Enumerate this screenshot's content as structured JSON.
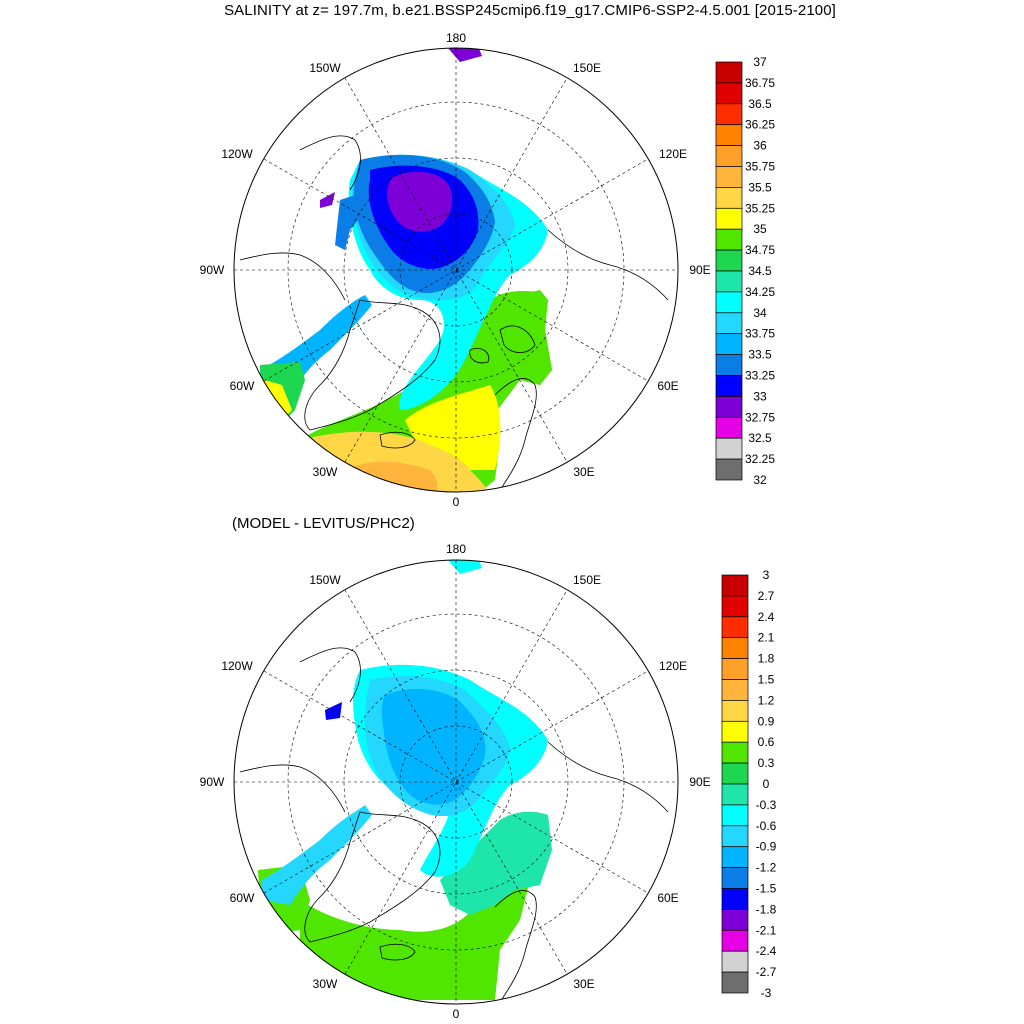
{
  "title": "SALINITY at z= 197.7m, b.e21.BSSP245cmip6.f19_g17.CMIP6-SSP2-4.5.001 [2015-2100]",
  "subtitle": "(MODEL - LEVITUS/PHC2)",
  "map_labels": {
    "lon_180": "180",
    "lon_150w": "150W",
    "lon_150e": "150E",
    "lon_120w": "120W",
    "lon_120e": "120E",
    "lon_90w": "90W",
    "lon_90e": "90E",
    "lon_60w": "60W",
    "lon_60e": "60E",
    "lon_30w": "30W",
    "lon_30e": "30E",
    "lon_0": "0"
  },
  "salinity_colorbar": {
    "labels": [
      "37",
      "36.75",
      "36.5",
      "36.25",
      "36",
      "35.75",
      "35.5",
      "35.25",
      "35",
      "34.75",
      "34.5",
      "34.25",
      "34",
      "33.75",
      "33.5",
      "33.25",
      "33",
      "32.75",
      "32.5",
      "32.25",
      "32"
    ],
    "colors": [
      "#c80000",
      "#e10000",
      "#ff2d00",
      "#ff8200",
      "#ffa028",
      "#ffb43c",
      "#ffd746",
      "#ffff00",
      "#50e600",
      "#1ed750",
      "#1ee6aa",
      "#00ffff",
      "#23d7ff",
      "#00b4ff",
      "#0a7de6",
      "#0000ff",
      "#7d00d7",
      "#e600e6",
      "#d2d2d2",
      "#6e6e6e"
    ]
  },
  "anomaly_colorbar": {
    "labels": [
      "3",
      "2.7",
      "2.4",
      "2.1",
      "1.8",
      "1.5",
      "1.2",
      "0.9",
      "0.6",
      "0.3",
      "0",
      "-0.3",
      "-0.6",
      "-0.9",
      "-1.2",
      "-1.5",
      "-1.8",
      "-2.1",
      "-2.4",
      "-2.7",
      "-3"
    ],
    "colors": [
      "#c80000",
      "#e10000",
      "#ff2d00",
      "#ff8200",
      "#ffa028",
      "#ffb43c",
      "#ffd746",
      "#ffff00",
      "#50e600",
      "#1ed750",
      "#1ee6aa",
      "#00ffff",
      "#23d7ff",
      "#00b4ff",
      "#0a7de6",
      "#0000ff",
      "#7d00d7",
      "#e600e6",
      "#d2d2d2",
      "#6e6e6e"
    ]
  }
}
